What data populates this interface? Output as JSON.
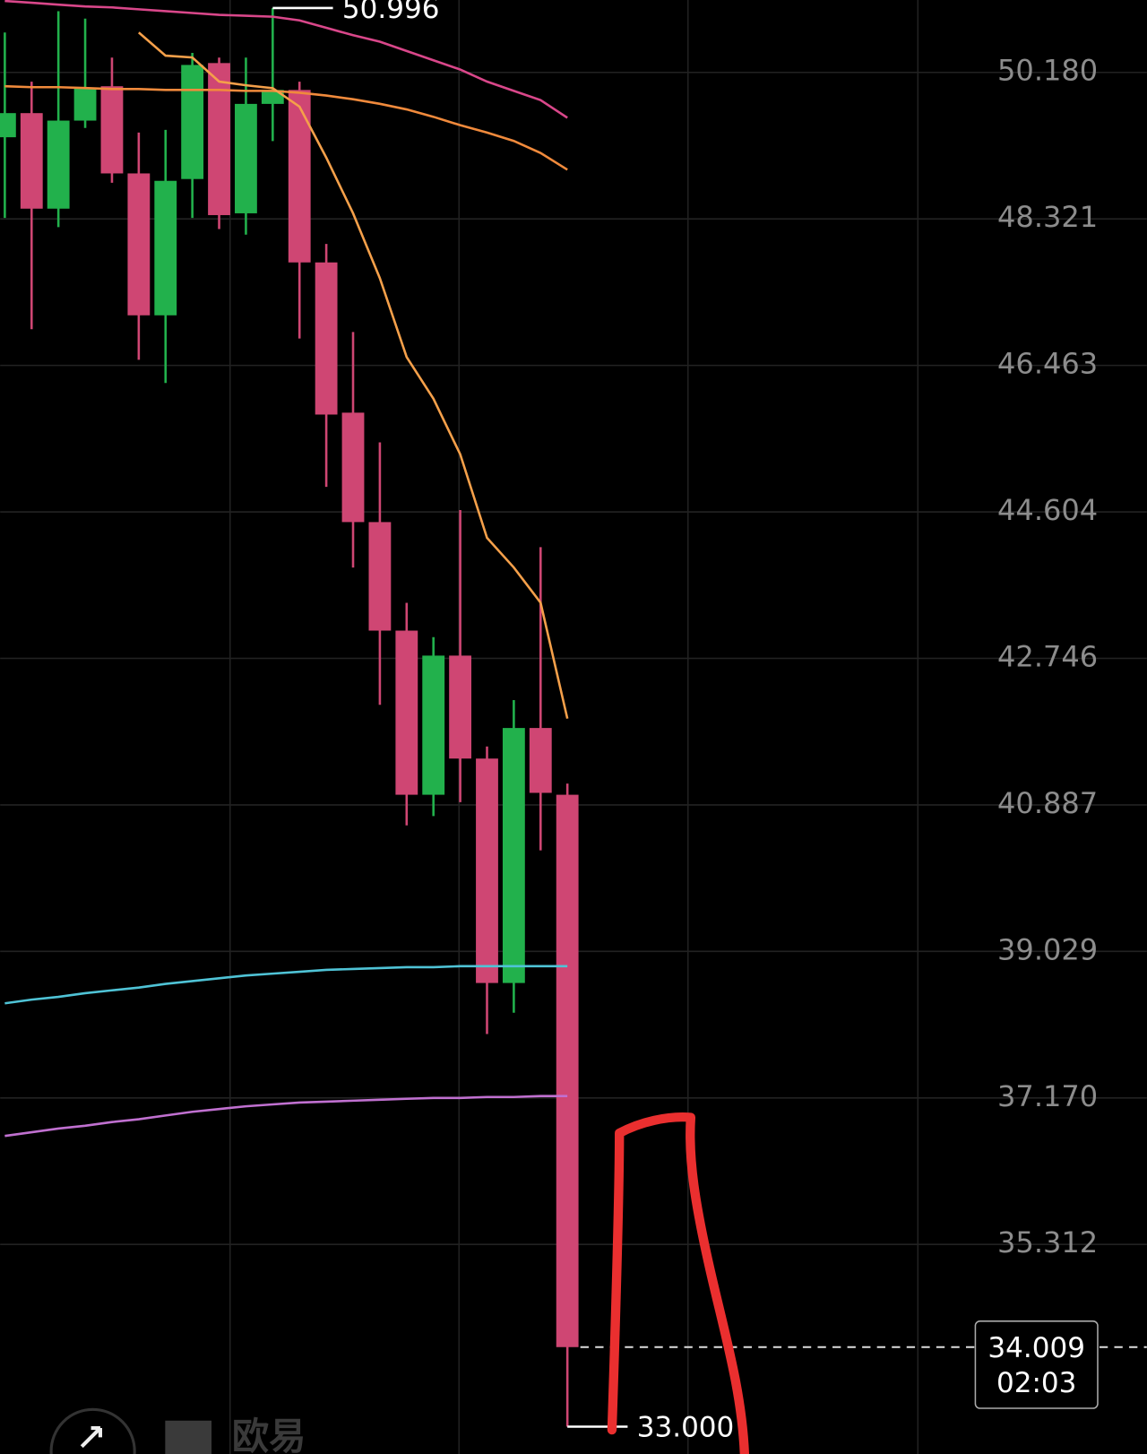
{
  "chart_data": {
    "type": "candlestick",
    "open": [
      49.357,
      49.663,
      48.451,
      49.568,
      50.004,
      48.898,
      47.098,
      48.827,
      50.298,
      48.392,
      49.78,
      49.957,
      47.769,
      45.863,
      44.475,
      43.098,
      41.016,
      42.781,
      41.475,
      38.628,
      41.863,
      41.016
    ],
    "high": [
      50.686,
      50.062,
      50.956,
      50.862,
      50.368,
      49.416,
      49.451,
      50.427,
      50.368,
      50.368,
      50.996,
      50.062,
      48.004,
      46.886,
      45.486,
      43.451,
      43.016,
      44.628,
      41.628,
      42.216,
      44.157,
      41.157
    ],
    "low": [
      48.333,
      46.922,
      48.216,
      49.474,
      48.78,
      46.533,
      46.239,
      48.333,
      48.192,
      48.121,
      49.309,
      46.804,
      44.922,
      43.898,
      42.157,
      40.628,
      40.746,
      40.922,
      37.981,
      38.251,
      40.31,
      33.0
    ],
    "close": [
      49.663,
      48.451,
      49.568,
      49.98,
      48.898,
      47.098,
      48.804,
      50.274,
      48.369,
      49.78,
      49.957,
      47.769,
      45.839,
      44.475,
      43.098,
      41.016,
      42.781,
      41.475,
      38.628,
      41.863,
      41.04,
      34.009
    ],
    "up_color": "#22b14c",
    "down_color": "#cf4673",
    "lines": [
      {
        "color": "#d9478a",
        "values": [
          51.086,
          51.063,
          51.039,
          51.016,
          51.004,
          50.98,
          50.957,
          50.933,
          50.91,
          50.898,
          50.886,
          50.839,
          50.745,
          50.651,
          50.569,
          50.451,
          50.333,
          50.216,
          50.063,
          49.945,
          49.828,
          49.604
        ]
      },
      {
        "color": "#f08a3c",
        "values": [
          50.004,
          49.992,
          49.992,
          49.981,
          49.969,
          49.969,
          49.957,
          49.957,
          49.957,
          49.945,
          49.945,
          49.922,
          49.886,
          49.839,
          49.781,
          49.71,
          49.616,
          49.51,
          49.416,
          49.31,
          49.157,
          48.945
        ]
      },
      {
        "color": "#f5a04a",
        "values": [
          null,
          null,
          null,
          null,
          null,
          50.686,
          50.392,
          50.369,
          50.063,
          50.016,
          49.98,
          49.745,
          49.098,
          48.392,
          47.569,
          46.569,
          46.04,
          45.334,
          44.275,
          43.899,
          43.452,
          41.982
        ]
      },
      {
        "color": "#4fc3d6",
        "values": [
          38.37,
          38.417,
          38.452,
          38.499,
          38.535,
          38.57,
          38.617,
          38.652,
          38.688,
          38.723,
          38.747,
          38.77,
          38.794,
          38.806,
          38.817,
          38.829,
          38.829,
          38.841,
          38.841,
          38.841,
          38.841,
          38.841
        ]
      },
      {
        "color": "#c070d0",
        "values": [
          36.688,
          36.735,
          36.782,
          36.817,
          36.864,
          36.9,
          36.947,
          36.994,
          37.029,
          37.064,
          37.088,
          37.111,
          37.123,
          37.135,
          37.147,
          37.159,
          37.17,
          37.17,
          37.182,
          37.182,
          37.194,
          37.194
        ]
      }
    ],
    "ylim": [
      32.653,
      51.098
    ],
    "yticks": [
      {
        "value": 50.18,
        "label": "50.180"
      },
      {
        "value": 48.321,
        "label": "48.321"
      },
      {
        "value": 46.463,
        "label": "46.463"
      },
      {
        "value": 44.604,
        "label": "44.604"
      },
      {
        "value": 42.746,
        "label": "42.746"
      },
      {
        "value": 40.887,
        "label": "40.887"
      },
      {
        "value": 39.029,
        "label": "39.029"
      },
      {
        "value": 37.17,
        "label": "37.170"
      },
      {
        "value": 35.312,
        "label": "35.312"
      }
    ],
    "grid": true,
    "max_label": "50.996",
    "min_label": "33.000",
    "last_price": {
      "value": 34.009,
      "label": "34.009"
    },
    "countdown": "02:03",
    "watermark": "欧易"
  }
}
